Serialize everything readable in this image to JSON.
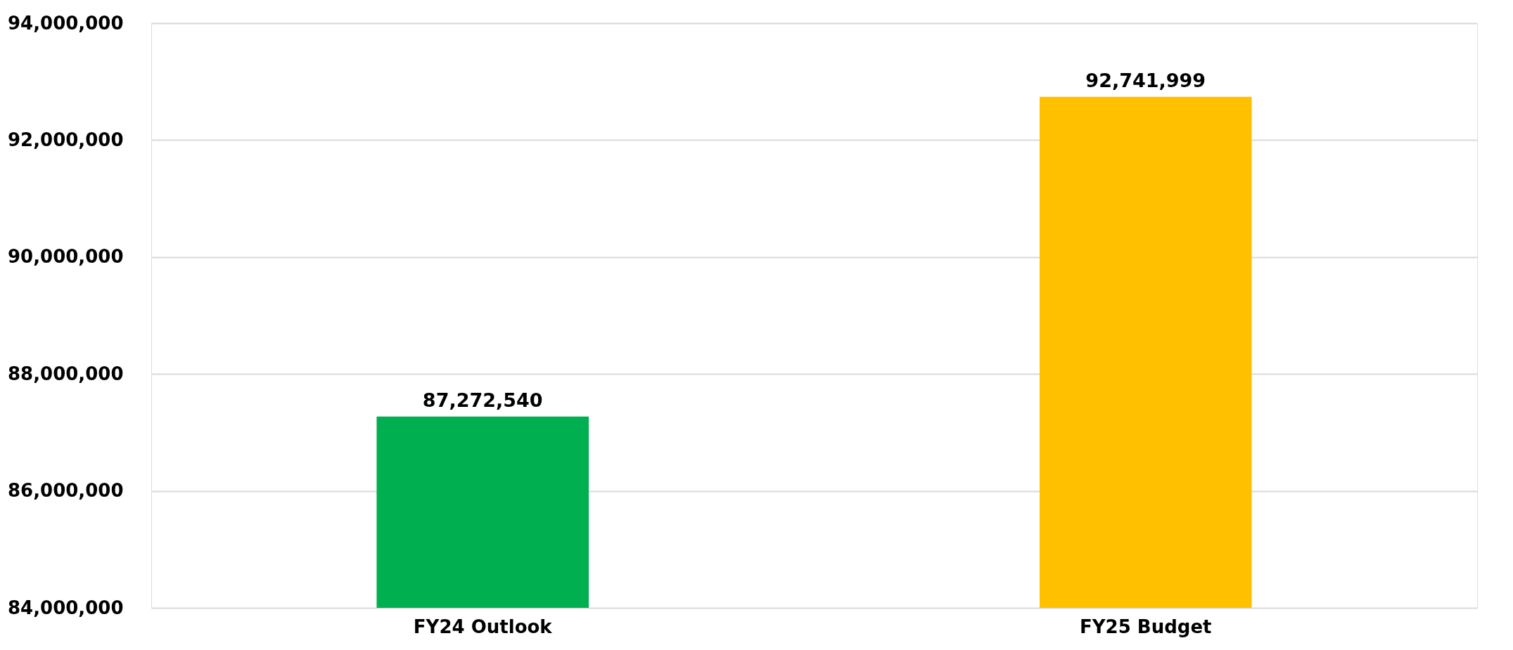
{
  "chart_data": {
    "type": "bar",
    "categories": [
      "FY24 Outlook",
      "FY25 Budget"
    ],
    "values": [
      87272540,
      92741999
    ],
    "value_labels": [
      "87,272,540",
      "92,741,999"
    ],
    "colors": [
      "#00b050",
      "#ffc000"
    ],
    "ylim": [
      84000000,
      94000000
    ],
    "yticks": [
      {
        "value": 84000000,
        "label": "84,000,000"
      },
      {
        "value": 86000000,
        "label": "86,000,000"
      },
      {
        "value": 88000000,
        "label": "88,000,000"
      },
      {
        "value": 90000000,
        "label": "90,000,000"
      },
      {
        "value": 92000000,
        "label": "92,000,000"
      },
      {
        "value": 94000000,
        "label": "94,000,000"
      }
    ],
    "grid": "y"
  }
}
